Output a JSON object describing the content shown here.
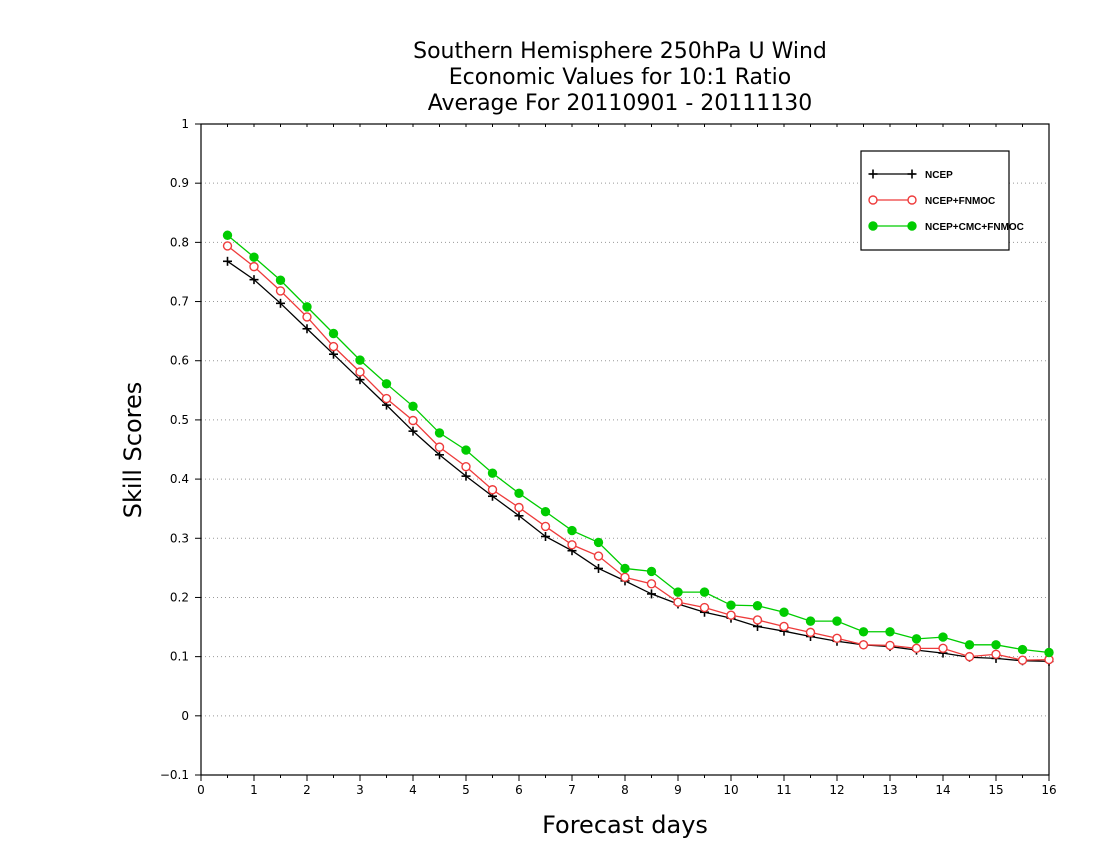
{
  "chart_data": {
    "type": "line",
    "title": [
      "Southern Hemisphere 250hPa U Wind",
      "Economic Values for 10:1 Ratio",
      "Average For 20110901 - 20111130"
    ],
    "xlabel": "Forecast days",
    "ylabel": "Skill Scores",
    "xlim": [
      0,
      16
    ],
    "ylim": [
      -0.1,
      1
    ],
    "xticks": [
      0,
      1,
      2,
      3,
      4,
      5,
      6,
      7,
      8,
      9,
      10,
      11,
      12,
      13,
      14,
      15,
      16
    ],
    "yticks": [
      -0.1,
      0,
      0.1,
      0.2,
      0.3,
      0.4,
      0.5,
      0.6,
      0.7,
      0.8,
      0.9,
      1
    ],
    "ytick_labels": [
      "−0.1",
      "0",
      "0.1",
      "0.2",
      "0.3",
      "0.4",
      "0.5",
      "0.6",
      "0.7",
      "0.8",
      "0.9",
      "1"
    ],
    "grid": "horizontal dotted",
    "legend_position": "top-right",
    "x": [
      0.5,
      1,
      1.5,
      2,
      2.5,
      3,
      3.5,
      4,
      4.5,
      5,
      5.5,
      6,
      6.5,
      7,
      7.5,
      8,
      8.5,
      9,
      9.5,
      10,
      10.5,
      11,
      11.5,
      12,
      12.5,
      13,
      13.5,
      14,
      14.5,
      15,
      15.5,
      16
    ],
    "series": [
      {
        "name": "NCEP",
        "color": "#000000",
        "marker": "plus",
        "values": [
          0.768,
          0.737,
          0.697,
          0.654,
          0.611,
          0.568,
          0.525,
          0.481,
          0.441,
          0.405,
          0.371,
          0.338,
          0.303,
          0.279,
          0.249,
          0.228,
          0.206,
          0.189,
          0.175,
          0.165,
          0.151,
          0.143,
          0.134,
          0.126,
          0.12,
          0.117,
          0.111,
          0.106,
          0.099,
          0.097,
          0.093,
          0.092
        ]
      },
      {
        "name": "NCEP+FNMOC",
        "color": "#ee3b3b",
        "marker": "open-circle",
        "values": [
          0.794,
          0.759,
          0.718,
          0.674,
          0.624,
          0.581,
          0.536,
          0.499,
          0.454,
          0.421,
          0.382,
          0.352,
          0.32,
          0.289,
          0.27,
          0.234,
          0.223,
          0.192,
          0.183,
          0.17,
          0.162,
          0.151,
          0.141,
          0.131,
          0.12,
          0.119,
          0.114,
          0.114,
          0.1,
          0.104,
          0.094,
          0.095
        ]
      },
      {
        "name": "NCEP+CMC+FNMOC",
        "color": "#00cc00",
        "marker": "filled-circle",
        "values": [
          0.812,
          0.775,
          0.736,
          0.691,
          0.646,
          0.601,
          0.561,
          0.523,
          0.478,
          0.449,
          0.41,
          0.376,
          0.345,
          0.313,
          0.293,
          0.249,
          0.244,
          0.209,
          0.209,
          0.187,
          0.186,
          0.175,
          0.16,
          0.16,
          0.142,
          0.142,
          0.13,
          0.133,
          0.12,
          0.12,
          0.112,
          0.107
        ]
      }
    ]
  }
}
